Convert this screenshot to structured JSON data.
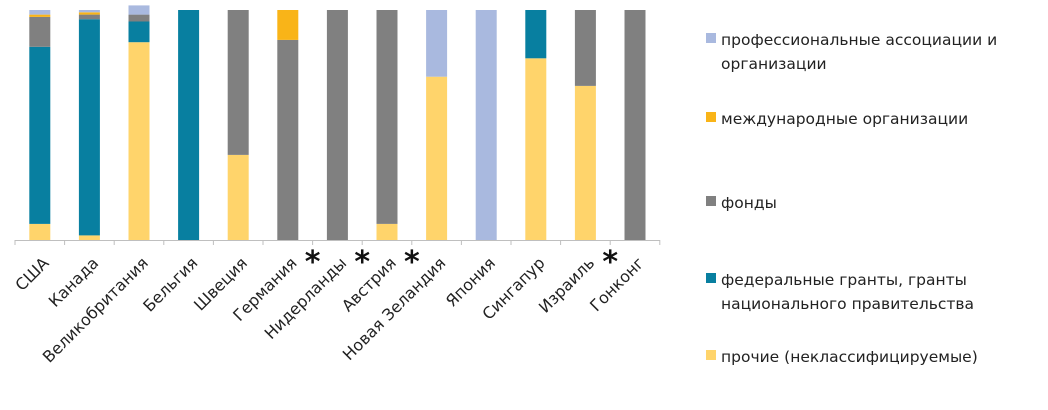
{
  "chart_data": {
    "type": "bar",
    "stacked": true,
    "normalized": true,
    "categories": [
      "США",
      "Канада",
      "Великобритания",
      "Бельгия",
      "Швеция",
      "Германия",
      "Нидерланды",
      "Австрия",
      "Новая Зеландия",
      "Япония",
      "Сингапур",
      "Израиль",
      "Гонконг"
    ],
    "asterisk_after": [
      "Германия",
      "Нидерланды",
      "Австрия",
      "Израиль"
    ],
    "asterisk_symbol": "*",
    "series": [
      {
        "name": "прочие (неклассифицируемые)",
        "color": "#ffd46b",
        "values": [
          0.07,
          0.02,
          0.86,
          0.0,
          0.37,
          0.0,
          0.0,
          0.07,
          0.71,
          0.0,
          0.79,
          0.67,
          0.0
        ]
      },
      {
        "name": "федеральные гранты, гранты национального правительства",
        "color": "#087fa0",
        "values": [
          0.77,
          0.94,
          0.09,
          1.0,
          0.0,
          0.0,
          0.0,
          0.0,
          0.0,
          0.0,
          0.21,
          0.0,
          0.0
        ]
      },
      {
        "name": "фонды",
        "color": "#808080",
        "values": [
          0.13,
          0.02,
          0.03,
          0.0,
          0.63,
          0.87,
          1.0,
          0.93,
          0.0,
          0.0,
          0.0,
          0.33,
          1.0
        ]
      },
      {
        "name": "международные организации",
        "color": "#f9b418",
        "values": [
          0.01,
          0.01,
          0.0,
          0.0,
          0.0,
          0.13,
          0.0,
          0.0,
          0.0,
          0.0,
          0.0,
          0.0,
          0.0
        ]
      },
      {
        "name": "профессиональные ассоциации и организации",
        "color": "#a9b9df",
        "values": [
          0.02,
          0.01,
          0.04,
          0.0,
          0.0,
          0.0,
          0.0,
          0.0,
          0.29,
          1.0,
          0.0,
          0.0,
          0.0
        ]
      }
    ],
    "legend": {
      "position": "right",
      "order": [
        4,
        3,
        2,
        1,
        0
      ]
    },
    "ylim": [
      0,
      1
    ],
    "grid": false
  }
}
